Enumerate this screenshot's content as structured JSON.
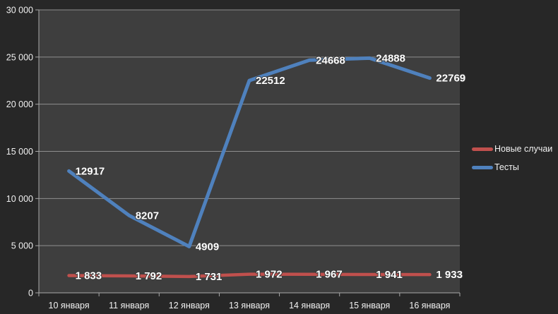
{
  "chart_data": {
    "type": "line",
    "title": "",
    "xlabel": "",
    "ylabel": "",
    "grid": true,
    "categories": [
      "10 января",
      "11 января",
      "12 января",
      "13 января",
      "14 января",
      "15 января",
      "16 января"
    ],
    "series": [
      {
        "id": "new-cases",
        "name": "Новые случаи",
        "color": "#C0504D",
        "values": [
          1833,
          1792,
          1731,
          1972,
          1967,
          1941,
          1933
        ],
        "labels": [
          "1 833",
          "1 792",
          "1 731",
          "1 972",
          "1 967",
          "1 941",
          "1 933"
        ]
      },
      {
        "id": "tests",
        "name": "Тесты",
        "color": "#4F81BD",
        "values": [
          12917,
          8207,
          4909,
          22512,
          24668,
          24888,
          22769
        ],
        "labels": [
          "12917",
          "8207",
          "4909",
          "22512",
          "24668",
          "24888",
          "22769"
        ]
      }
    ],
    "y_axis": {
      "min": 0,
      "max": 30000,
      "tick_step": 5000,
      "tick_labels": [
        "0",
        "5 000",
        "10 000",
        "15 000",
        "20 000",
        "25 000",
        "30 000"
      ]
    },
    "legend": {
      "position": "right"
    }
  },
  "colors": {
    "outer_background": "#272727",
    "plot_background": "#3E3E3E",
    "gridline": "#8F8F8F",
    "axis": "#A9A9A9",
    "axis_text": "#F1F1F1",
    "data_label_text": "#FFFFFF"
  }
}
